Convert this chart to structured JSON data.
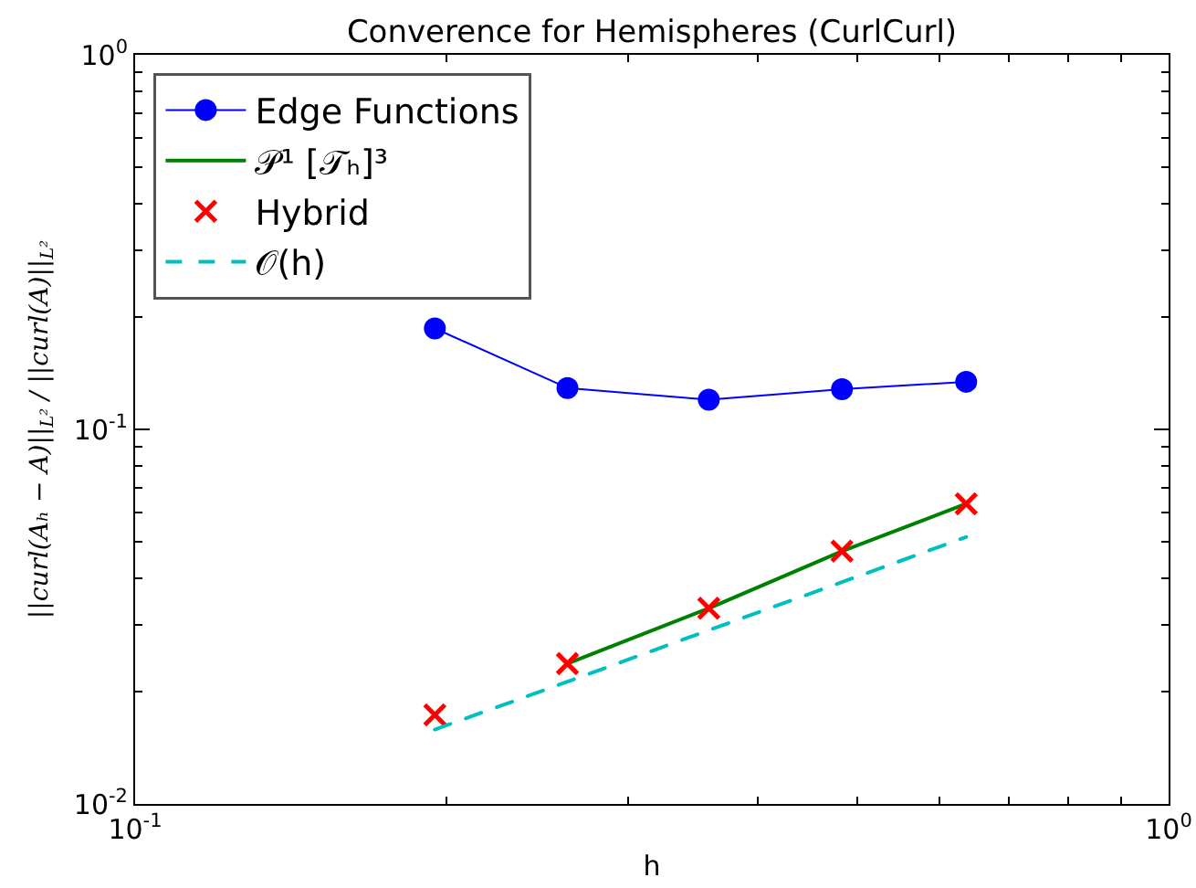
{
  "chart_data": {
    "type": "line",
    "title": "Converence for Hemispheres (CurlCurl)",
    "xlabel": "h",
    "ylabel": "||curl(Aₕ − A)||$_{L²}$ / ||curl(A)||$_{L²}$",
    "x": [
      0.195,
      0.262,
      0.359,
      0.483,
      0.637
    ],
    "series": [
      {
        "name": "Edge Functions",
        "color": "#0000ff",
        "marker": "circle",
        "values": [
          0.186,
          0.129,
          0.12,
          0.128,
          0.134
        ]
      },
      {
        "name": "𝒫¹ [𝒯ₕ]³",
        "color": "#008000",
        "marker": "none",
        "values": [
          null,
          0.0237,
          0.0333,
          0.0473,
          0.0633
        ]
      },
      {
        "name": "Hybrid",
        "type": "scatter",
        "color": "#ff0000",
        "marker": "cross",
        "values": [
          0.0173,
          0.0237,
          0.0333,
          0.0473,
          0.0633
        ]
      },
      {
        "name": "𝒪(h)",
        "color": "#00bfbf",
        "marker": "none",
        "line_style": "dashed",
        "values": [
          0.0158,
          0.0212,
          0.0291,
          0.0391,
          0.0516
        ]
      }
    ],
    "log": "xy",
    "xlim": [
      0.1,
      1
    ],
    "ylim": [
      0.01,
      1
    ],
    "xticks": [
      {
        "value": 0.1,
        "label": "10$^{-1}$"
      },
      {
        "value": 0.2,
        "label": null
      },
      {
        "value": 0.3,
        "label": null
      },
      {
        "value": 0.4,
        "label": null
      },
      {
        "value": 0.5,
        "label": null
      },
      {
        "value": 0.6,
        "label": null
      },
      {
        "value": 0.7,
        "label": null
      },
      {
        "value": 0.8,
        "label": null
      },
      {
        "value": 0.9,
        "label": null
      },
      {
        "value": 1,
        "label": "10$^{0}$"
      }
    ],
    "yticks": [
      {
        "value": 0.01,
        "label": "10$^{-2}$"
      },
      {
        "value": 0.02,
        "label": null
      },
      {
        "value": 0.03,
        "label": null
      },
      {
        "value": 0.04,
        "label": null
      },
      {
        "value": 0.05,
        "label": null
      },
      {
        "value": 0.06,
        "label": null
      },
      {
        "value": 0.07,
        "label": null
      },
      {
        "value": 0.08,
        "label": null
      },
      {
        "value": 0.09,
        "label": null
      },
      {
        "value": 0.1,
        "label": "10$^{-1}$"
      },
      {
        "value": 0.2,
        "label": null
      },
      {
        "value": 0.3,
        "label": null
      },
      {
        "value": 0.4,
        "label": null
      },
      {
        "value": 0.5,
        "label": null
      },
      {
        "value": 0.6,
        "label": null
      },
      {
        "value": 0.7,
        "label": null
      },
      {
        "value": 0.8,
        "label": null
      },
      {
        "value": 0.9,
        "label": null
      },
      {
        "value": 1,
        "label": "10$^{0}$"
      }
    ],
    "grid": false,
    "legend": "top left"
  }
}
